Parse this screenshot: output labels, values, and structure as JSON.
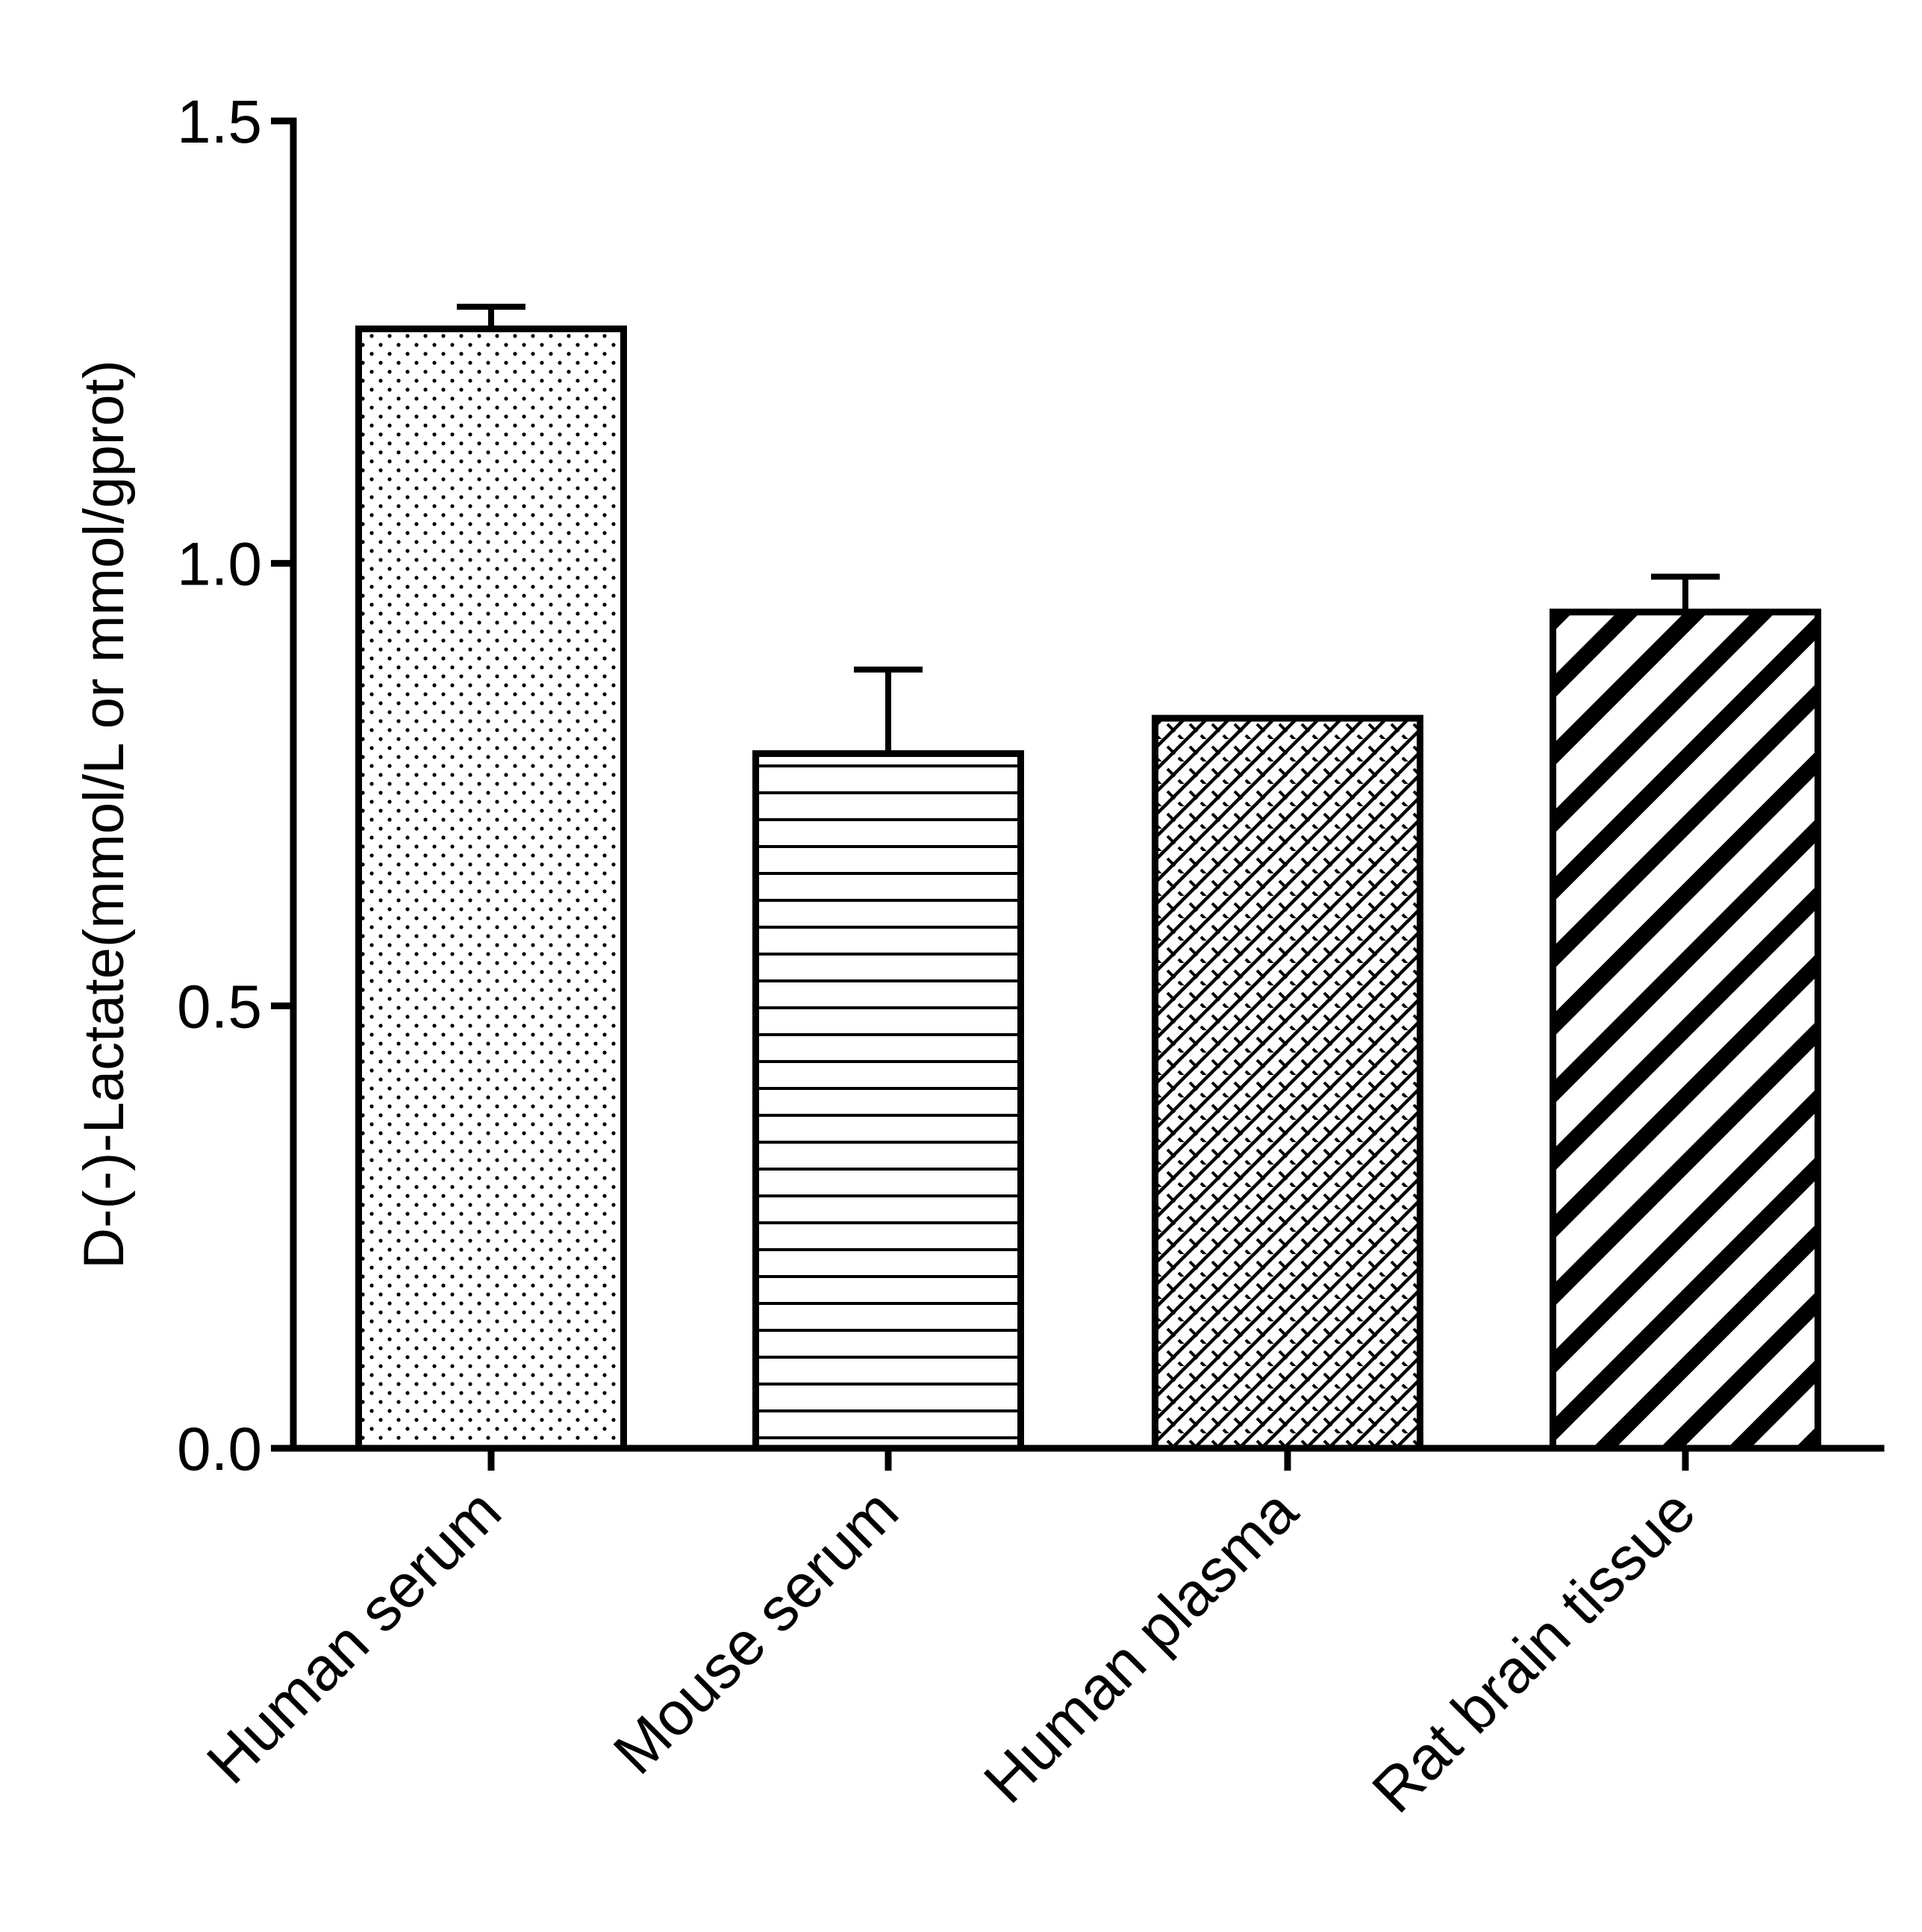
{
  "chart_data": {
    "type": "bar",
    "title": "",
    "xlabel": "",
    "ylabel": "D-(-)-Lactate(mmol/L or mmol/gprot)",
    "ylim": [
      0,
      1.5
    ],
    "yticks": [
      "0.0",
      "0.5",
      "1.0",
      "1.5"
    ],
    "ytick_values": [
      0,
      0.5,
      1.0,
      1.5
    ],
    "grid": false,
    "categories": [
      "Human serum",
      "Mouse serum",
      "Human plasma",
      "Rat brain tissue"
    ],
    "values": [
      1.265,
      0.785,
      0.825,
      0.945
    ],
    "error_upper": [
      0.025,
      0.095,
      0.0,
      0.04
    ],
    "patterns": [
      "dots",
      "horizontal-lines",
      "brick-crosshatch",
      "diagonal-stripes"
    ],
    "colors": {
      "ink": "#000000",
      "background": "#ffffff"
    }
  }
}
